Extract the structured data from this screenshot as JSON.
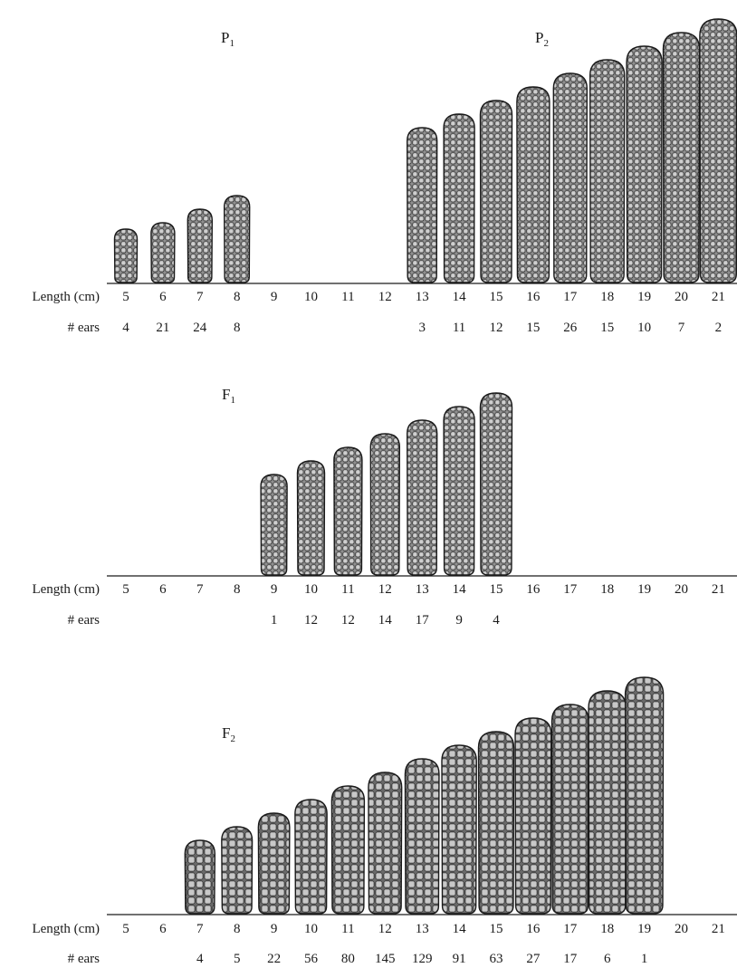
{
  "length_label": "Length (cm)",
  "ears_label": "# ears",
  "length_ticks": [
    5,
    6,
    7,
    8,
    9,
    10,
    11,
    12,
    13,
    14,
    15,
    16,
    17,
    18,
    19,
    20,
    21
  ],
  "colors": {
    "ink": "#1a1a1a",
    "kernel_dark": "#9a9a9a",
    "kernel_light": "#c4c4c4"
  },
  "chart_data": [
    {
      "type": "bar",
      "title": "P",
      "title_sub": "1",
      "style": "dark",
      "categories": [
        5,
        6,
        7,
        8
      ],
      "values": [
        4,
        21,
        24,
        8
      ]
    },
    {
      "type": "bar",
      "title": "P",
      "title_sub": "2",
      "style": "dark",
      "categories": [
        13,
        14,
        15,
        16,
        17,
        18,
        19,
        20,
        21
      ],
      "values": [
        3,
        11,
        12,
        15,
        26,
        15,
        10,
        7,
        2
      ]
    },
    {
      "type": "bar",
      "title": "F",
      "title_sub": "1",
      "style": "dark",
      "categories": [
        9,
        10,
        11,
        12,
        13,
        14,
        15
      ],
      "values": [
        1,
        12,
        12,
        14,
        17,
        9,
        4
      ]
    },
    {
      "type": "bar",
      "title": "F",
      "title_sub": "2",
      "style": "light",
      "categories": [
        7,
        8,
        9,
        10,
        11,
        12,
        13,
        14,
        15,
        16,
        17,
        18,
        19
      ],
      "values": [
        4,
        5,
        22,
        56,
        80,
        145,
        129,
        91,
        63,
        27,
        17,
        6,
        1
      ]
    }
  ]
}
